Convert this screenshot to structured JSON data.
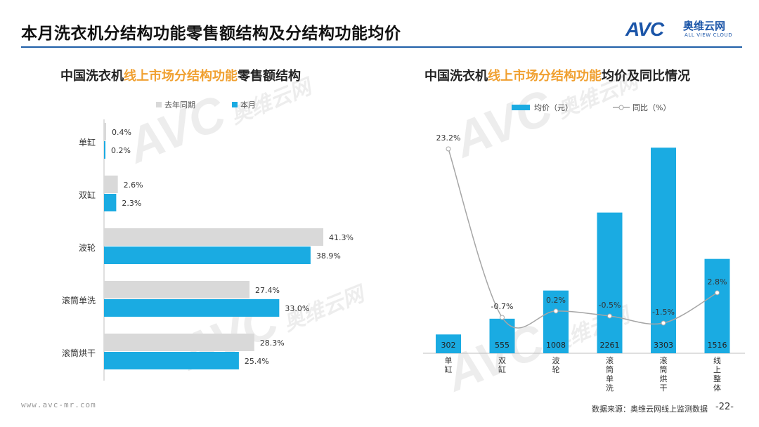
{
  "page_title": "本月洗衣机分结构功能零售额结构及分结构功能均价",
  "logo": {
    "mark": "AVC",
    "cn": "奥维云网",
    "en": "ALL VIEW CLOUD"
  },
  "left": {
    "title_prefix": "中国洗衣机",
    "title_highlight": "线上市场分结构功能",
    "title_suffix": "零售额结构"
  },
  "right": {
    "title_prefix": "中国洗衣机",
    "title_highlight": "线上市场分结构功能",
    "title_suffix": "均价及同比情况"
  },
  "footer": {
    "url": "www.avc-mr.com",
    "source": "数据来源：奥维云网线上监测数据",
    "page": "-22-"
  },
  "watermark": {
    "mark": "AVC",
    "cn": "奥维云网",
    "en": "ALL VIEW CLOUD"
  },
  "colors": {
    "last_year": "#d9d9d9",
    "this_month": "#1aabe2",
    "line": "#a6a6a6",
    "title_rule": "#1f5fa8",
    "highlight": "#f0a030"
  },
  "chart_data": [
    {
      "type": "bar",
      "orientation": "horizontal",
      "categories": [
        "单缸",
        "双缸",
        "波轮",
        "滚筒单洗",
        "滚筒烘干"
      ],
      "series": [
        {
          "name": "去年同期",
          "values": [
            0.4,
            2.6,
            41.3,
            27.4,
            28.3
          ],
          "labels": [
            "0.4%",
            "2.6%",
            "41.3%",
            "27.4%",
            "28.3%"
          ]
        },
        {
          "name": "本月",
          "values": [
            0.2,
            2.3,
            38.9,
            33.0,
            25.4
          ],
          "labels": [
            "0.2%",
            "2.3%",
            "38.9%",
            "33.0%",
            "25.4%"
          ]
        }
      ],
      "legend": "top",
      "grid": false,
      "xlim": [
        0,
        45
      ]
    },
    {
      "type": "bar",
      "categories": [
        "单缸",
        "双缸",
        "波轮",
        "滚筒单洗",
        "滚筒烘干",
        "线上整体"
      ],
      "series": [
        {
          "name": "均价（元）",
          "type": "bar",
          "values": [
            302,
            555,
            1008,
            2261,
            3303,
            1516
          ],
          "labels": [
            "302",
            "555",
            "1008",
            "2261",
            "3303",
            "1516"
          ]
        },
        {
          "name": "同比（%）",
          "type": "line",
          "values": [
            23.2,
            -0.7,
            0.2,
            -0.5,
            -1.5,
            2.8
          ],
          "labels": [
            "23.2%",
            "-0.7%",
            "0.2%",
            "-0.5%",
            "-1.5%",
            "2.8%"
          ]
        }
      ],
      "legend": "top",
      "grid": false,
      "ylim": [
        0,
        3600
      ],
      "y2lim": [
        -5,
        27
      ]
    }
  ]
}
